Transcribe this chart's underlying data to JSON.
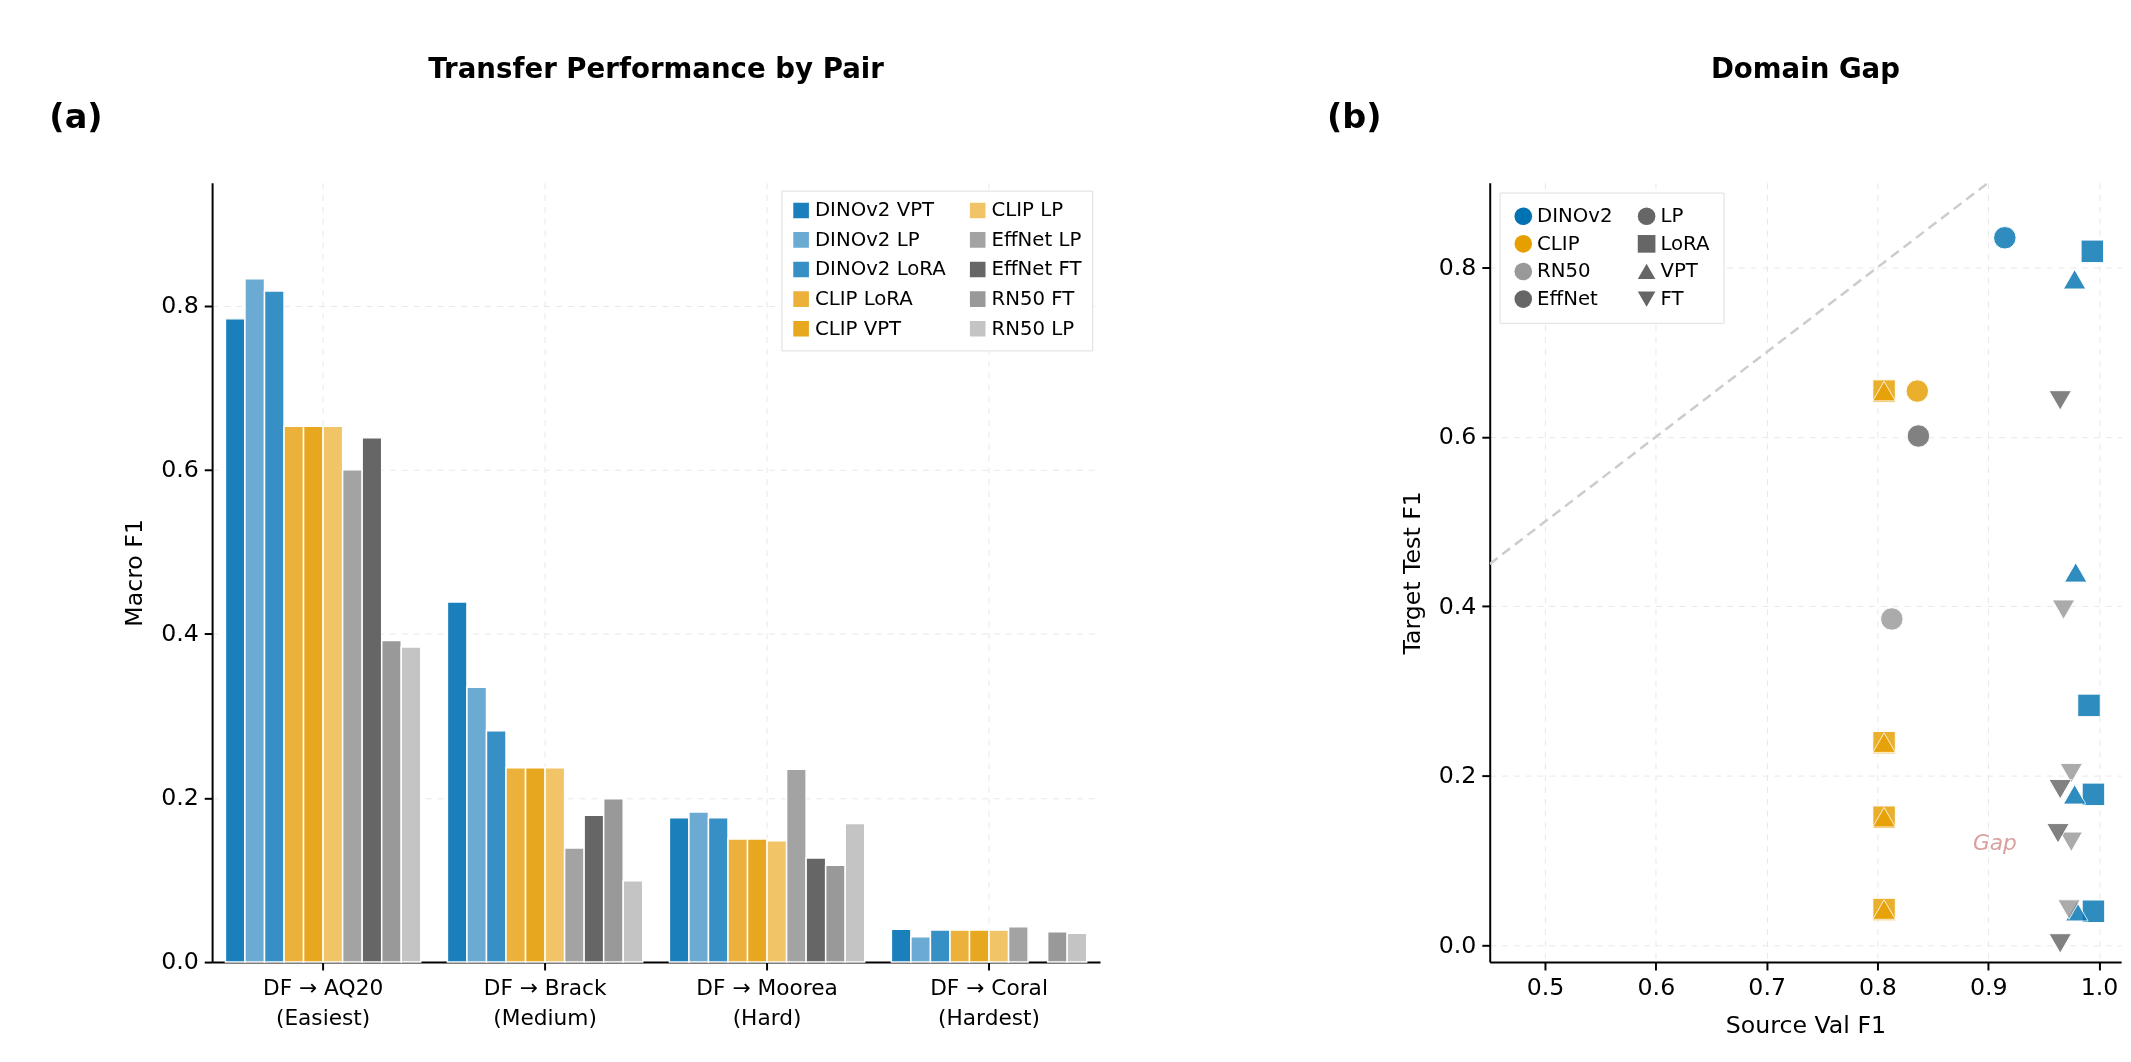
{
  "chart_data": [
    {
      "type": "bar",
      "title": "Transfer Performance by Pair",
      "ylabel": "Macro F1",
      "annotations": [
        "(a)"
      ],
      "categories": [
        "DF → AQ20\n(Easiest)",
        "DF → Brack\n(Medium)",
        "DF → Moorea\n(Hard)",
        "DF → Coral\n(Hardest)"
      ],
      "series": [
        {
          "name": "DINOv2 VPT",
          "color": "#1a7fba",
          "values": [
            0.784,
            0.439,
            0.176,
            0.04
          ]
        },
        {
          "name": "DINOv2 LP",
          "color": "#6aaad3",
          "values": [
            0.833,
            0.335,
            0.183,
            0.031
          ]
        },
        {
          "name": "DINOv2 LoRA",
          "color": "#368fc5",
          "values": [
            0.818,
            0.282,
            0.176,
            0.039
          ]
        },
        {
          "name": "CLIP LoRA",
          "color": "#ecb13a",
          "values": [
            0.653,
            0.237,
            0.15,
            0.039
          ]
        },
        {
          "name": "CLIP VPT",
          "color": "#e7a71f",
          "values": [
            0.653,
            0.237,
            0.15,
            0.039
          ]
        },
        {
          "name": "CLIP LP",
          "color": "#f0c467",
          "values": [
            0.653,
            0.237,
            0.148,
            0.039
          ]
        },
        {
          "name": "EffNet LP",
          "color": "#a3a3a3",
          "values": [
            0.6,
            0.139,
            0.235,
            0.043
          ]
        },
        {
          "name": "EffNet FT",
          "color": "#666666",
          "values": [
            0.639,
            0.179,
            0.127,
            null
          ]
        },
        {
          "name": "RN50 FT",
          "color": "#999999",
          "values": [
            0.392,
            0.199,
            0.118,
            0.037
          ]
        },
        {
          "name": "RN50 LP",
          "color": "#c4c4c4",
          "values": [
            0.384,
            0.099,
            0.169,
            0.035
          ]
        }
      ],
      "ylim": [
        0,
        0.95
      ],
      "yticks": [
        {
          "value": 0,
          "label": "0.0"
        },
        0.2,
        0.4,
        0.6,
        0.8
      ],
      "grid": true,
      "legend": "top right"
    },
    {
      "type": "scatter",
      "title": "Domain Gap",
      "xlabel": "Source Val F1",
      "ylabel": "Target Test F1",
      "annotations": [
        "(b)",
        "Gap"
      ],
      "series": [
        {
          "type": "line",
          "color": "#cccccc",
          "line_style": "dashed",
          "x": [
            0.45,
            0.9
          ],
          "values": [
            0.45,
            0.9
          ]
        },
        {
          "name": "DINOv2",
          "color": "#0173b2",
          "marker": "circle"
        },
        {
          "name": "CLIP",
          "color": "#e69f00",
          "marker": "circle"
        },
        {
          "name": "RN50",
          "color": "#999999",
          "marker": "circle"
        },
        {
          "name": "EffNet",
          "color": "#666666",
          "marker": "circle"
        },
        {
          "name": "LP",
          "color": "#666666",
          "marker": "circle"
        },
        {
          "name": "LoRA",
          "color": "#666666",
          "marker": "square"
        },
        {
          "name": "VPT",
          "color": "#666666",
          "marker": "triangle"
        },
        {
          "name": "FT",
          "color": "#666666",
          "marker": "triangle-down"
        },
        {
          "color": "#0173b2",
          "marker": "circle",
          "x": [
            0.915
          ],
          "values": [
            0.835
          ]
        },
        {
          "color": "#0173b2",
          "marker": "square",
          "x": [
            0.994,
            0.991,
            0.995,
            0.995
          ],
          "values": [
            0.819,
            0.283,
            0.178,
            0.04
          ]
        },
        {
          "color": "#0173b2",
          "marker": "triangle",
          "x": [
            0.978,
            0.979,
            0.978,
            0.98
          ],
          "values": [
            0.786,
            0.44,
            0.178,
            0.04
          ]
        },
        {
          "color": "#e69f00",
          "marker": "square",
          "x": [
            0.806,
            0.806,
            0.806,
            0.806
          ],
          "values": [
            0.654,
            0.239,
            0.151,
            0.042
          ]
        },
        {
          "color": "#e69f00",
          "marker": "triangle",
          "x": [
            0.806,
            0.806,
            0.806,
            0.806
          ],
          "values": [
            0.654,
            0.239,
            0.151,
            0.042
          ]
        },
        {
          "color": "#e69f00",
          "marker": "circle",
          "x": [
            0.836
          ],
          "values": [
            0.654
          ]
        },
        {
          "color": "#999999",
          "marker": "circle",
          "x": [
            0.813
          ],
          "values": [
            0.385
          ]
        },
        {
          "color": "#999999",
          "marker": "triangle-down",
          "x": [
            0.968,
            0.975,
            0.975,
            0.973
          ],
          "values": [
            0.396,
            0.203,
            0.122,
            0.042
          ]
        },
        {
          "color": "#666666",
          "marker": "circle",
          "x": [
            0.837
          ],
          "values": [
            0.601
          ]
        },
        {
          "color": "#666666",
          "marker": "triangle-down",
          "x": [
            0.965,
            0.965,
            0.963,
            0.965
          ],
          "values": [
            0.643,
            0.184,
            0.132,
            0.002
          ]
        }
      ],
      "xlim": [
        0.45,
        1.02
      ],
      "xticks": [
        0.5,
        0.6,
        0.7,
        0.8,
        0.9,
        {
          "value": 1.0,
          "label": "1.0"
        }
      ],
      "ylim": [
        -0.02,
        0.9
      ],
      "yticks": [
        {
          "value": 0.0,
          "label": "0.0"
        },
        0.2,
        0.4,
        0.6,
        0.8
      ],
      "grid": true,
      "legend": "top left"
    }
  ]
}
